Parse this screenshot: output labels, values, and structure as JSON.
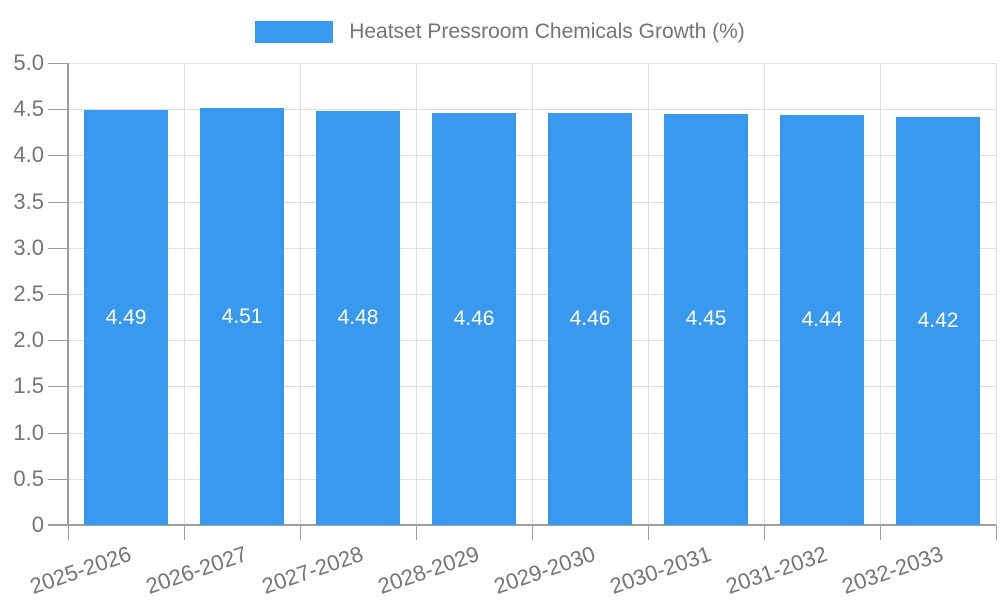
{
  "chart_data": {
    "type": "bar",
    "title": "",
    "legend_position": "top",
    "grid": true,
    "categories": [
      "2025-2026",
      "2026-2027",
      "2027-2028",
      "2028-2029",
      "2029-2030",
      "2030-2031",
      "2031-2032",
      "2032-2033"
    ],
    "series": [
      {
        "name": "Heatset Pressroom Chemicals Growth (%)",
        "values": [
          4.49,
          4.51,
          4.48,
          4.46,
          4.46,
          4.45,
          4.44,
          4.42
        ],
        "value_labels": [
          "4.49",
          "4.51",
          "4.48",
          "4.46",
          "4.46",
          "4.45",
          "4.44",
          "4.42"
        ]
      }
    ],
    "xlabel": "",
    "ylabel": "",
    "ylim": [
      0,
      5
    ],
    "yticks": [
      "0",
      "0.5",
      "1.0",
      "1.5",
      "2.0",
      "2.5",
      "3.0",
      "3.5",
      "4.0",
      "4.5",
      "5.0"
    ],
    "colors": {
      "bar": "#3999EE",
      "bar_value_text": "#ffffff",
      "axis_text": "#757575",
      "grid_line": "#e0e0e0",
      "axis_line": "#9e9e9e",
      "background": "#ffffff"
    }
  }
}
